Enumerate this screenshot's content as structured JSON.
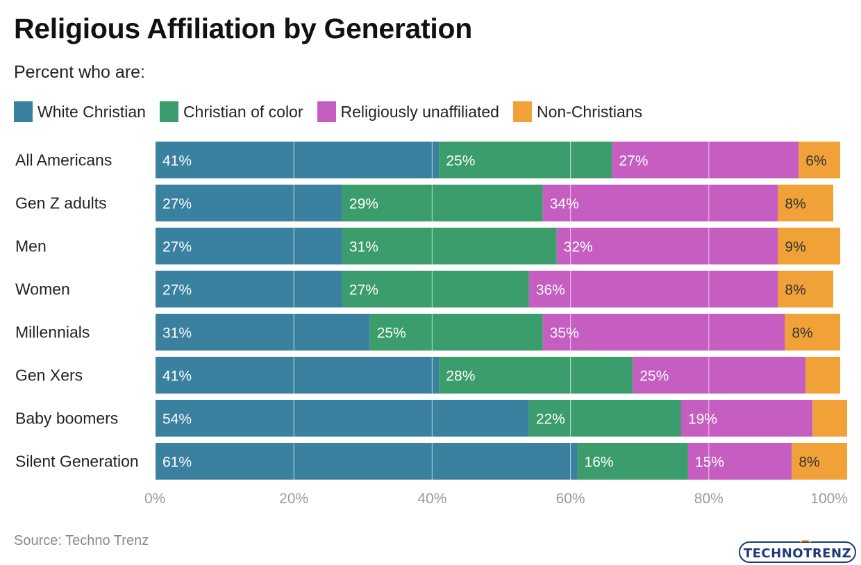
{
  "title": "Religious Affiliation by Generation",
  "subtitle": "Percent who are:",
  "source": "Source: Techno Trenz",
  "logo_text": "TECHNOTRENZ",
  "colors": {
    "white_christian": "#3a819f",
    "christian_of_color": "#3a9d6b",
    "unaffiliated": "#c55ec0",
    "non_christian": "#f0a138",
    "grid": "#ffffff",
    "tick": "#9a9a9a"
  },
  "legend": [
    {
      "label": "White Christian",
      "color": "#3a819f"
    },
    {
      "label": "Christian of color",
      "color": "#3a9d6b"
    },
    {
      "label": "Religiously unaffiliated",
      "color": "#c55ec0"
    },
    {
      "label": "Non-Christians",
      "color": "#f0a138"
    }
  ],
  "chart_data": {
    "type": "bar",
    "orientation": "horizontal",
    "stacked": true,
    "title": "Religious Affiliation by Generation",
    "subtitle": "Percent who are:",
    "xlabel": "",
    "ylabel": "",
    "xlim": [
      0,
      100
    ],
    "xticks": [
      0,
      20,
      40,
      60,
      80,
      100
    ],
    "xtick_labels": [
      "0%",
      "20%",
      "40%",
      "60%",
      "80%",
      "100%"
    ],
    "categories": [
      "All Americans",
      "Gen Z adults",
      "Men",
      "Women",
      "Millennials",
      "Gen Xers",
      "Baby boomers",
      "Silent Generation"
    ],
    "series": [
      {
        "name": "White Christian",
        "color": "#3a819f",
        "values": [
          41,
          27,
          27,
          27,
          31,
          41,
          54,
          61
        ],
        "labels": [
          "41%",
          "27%",
          "27%",
          "27%",
          "31%",
          "41%",
          "54%",
          "61%"
        ]
      },
      {
        "name": "Christian of color",
        "color": "#3a9d6b",
        "values": [
          25,
          29,
          31,
          27,
          25,
          28,
          22,
          16
        ],
        "labels": [
          "25%",
          "29%",
          "31%",
          "27%",
          "25%",
          "28%",
          "22%",
          "16%"
        ]
      },
      {
        "name": "Religiously unaffiliated",
        "color": "#c55ec0",
        "values": [
          27,
          34,
          32,
          36,
          35,
          25,
          19,
          15
        ],
        "labels": [
          "27%",
          "34%",
          "32%",
          "36%",
          "35%",
          "25%",
          "19%",
          "15%"
        ]
      },
      {
        "name": "Non-Christians",
        "color": "#f0a138",
        "values": [
          6,
          8,
          9,
          8,
          8,
          5,
          5,
          8
        ],
        "labels": [
          "6%",
          "8%",
          "9%",
          "8%",
          "8%",
          "",
          "",
          "8%"
        ]
      }
    ],
    "grid": true,
    "legend_position": "top-left"
  }
}
